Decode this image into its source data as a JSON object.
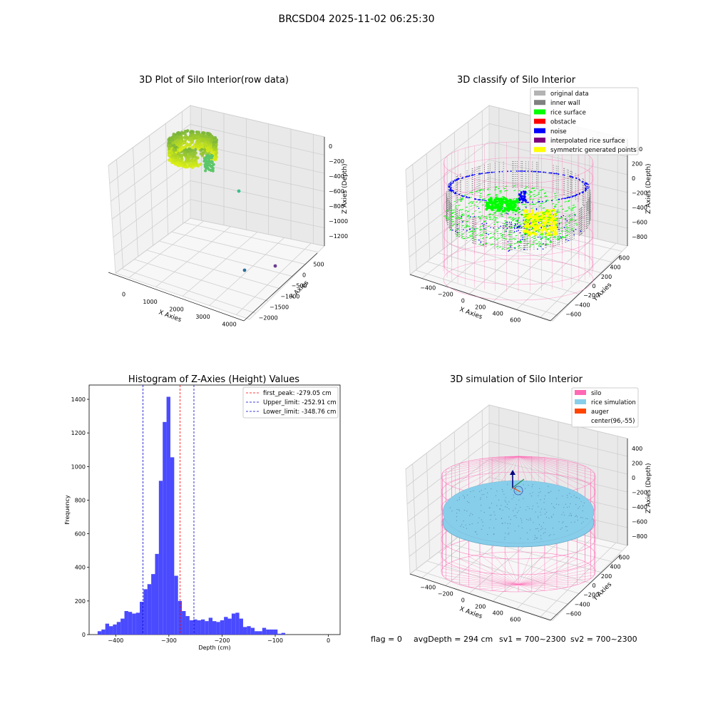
{
  "figure_title": "BRCSD04 2025-11-02 06:25:30",
  "footer": {
    "flag": "flag = 0",
    "avg_depth": "avgDepth = 294 cm",
    "sv1": "sv1 = 700~2300",
    "sv2": "sv2 = 700~2300"
  },
  "colors": {
    "original": "#b3b3b3",
    "inner_wall": "#808080",
    "rice_surface": "#00ff00",
    "obstacle": "#ff0000",
    "noise": "#0000ff",
    "interpolated": "#800080",
    "symmetric": "#ffff00",
    "silo": "#ff69b4",
    "rice_sim": "#87ceeb",
    "auger": "#ff4500",
    "hist_bar": "#4a4aff"
  },
  "chart_data": [
    {
      "type": "scatter",
      "title": "3D Plot of Silo Interior(row data)",
      "xlabel": "X Axies",
      "ylabel": "Y Axies",
      "zlabel": "Z Axies (Depth)",
      "xticks": [
        "0",
        "1000",
        "2000",
        "3000",
        "4000"
      ],
      "yticks": [
        "500",
        "0",
        "−500",
        "−1000",
        "−1500",
        "−2000"
      ],
      "zticks": [
        "0",
        "−200",
        "−400",
        "−600",
        "−800",
        "−1000",
        "−1200"
      ],
      "outliers": [
        {
          "x": 2300,
          "y": -500,
          "z": -600,
          "color": "#3cbf8c"
        },
        {
          "x": 3500,
          "y": -1600,
          "z": -1200,
          "color": "#2a6f9a"
        },
        {
          "x": 3800,
          "y": -1200,
          "z": -1200,
          "color": "#6b3d8f"
        }
      ]
    },
    {
      "type": "scatter",
      "title": "3D classify of Silo Interior",
      "xlabel": "X Axies",
      "ylabel": "Y Axies",
      "zlabel": "Z Axies (Depth)",
      "xticks": [
        "−400",
        "−200",
        "0",
        "200",
        "400",
        "600"
      ],
      "yticks": [
        "600",
        "400",
        "200",
        "0",
        "−200",
        "−400",
        "−600"
      ],
      "zticks": [
        "400",
        "200",
        "0",
        "−200",
        "−400",
        "−600",
        "−800"
      ],
      "legend": [
        "original data",
        "inner wall",
        "rice surface",
        "obstacle",
        "noise",
        "interpolated rice surface",
        "symmetric generated points"
      ],
      "legend_placement": "top-right"
    },
    {
      "type": "bar",
      "title": "Histogram of Z-Axies (Height) Values",
      "xlabel": "Depth (cm)",
      "ylabel": "Frequency",
      "xlim": [
        -450,
        22
      ],
      "ylim": [
        0,
        1485
      ],
      "xticks": [
        -400,
        -300,
        -200,
        -100,
        0
      ],
      "yticks": [
        0,
        200,
        400,
        600,
        800,
        1000,
        1200,
        1400
      ],
      "bin_start": -434,
      "bin_width": 7.2,
      "values": [
        20,
        30,
        65,
        50,
        60,
        75,
        95,
        140,
        135,
        125,
        130,
        195,
        270,
        300,
        360,
        480,
        915,
        1265,
        1415,
        1055,
        350,
        200,
        140,
        110,
        85,
        90,
        85,
        90,
        80,
        100,
        80,
        75,
        85,
        105,
        95,
        125,
        130,
        95,
        45,
        50,
        40,
        20,
        20,
        40,
        30,
        30,
        30,
        5,
        10
      ],
      "vlines": [
        {
          "label": "first_peak: -279.05 cm",
          "x": -279.05,
          "color": "#ff0000"
        },
        {
          "label": "Upper_limit: -252.91 cm",
          "x": -252.91,
          "color": "#0000cc"
        },
        {
          "label": "Lower_limit: -348.76 cm",
          "x": -348.76,
          "color": "#0000cc"
        }
      ],
      "legend_placement": "top-right"
    },
    {
      "type": "scatter",
      "title": "3D simulation of Silo Interior",
      "xlabel": "X Axies",
      "ylabel": "Y Axies",
      "zlabel": "Z Axies (Depth)",
      "xticks": [
        "−400",
        "−200",
        "0",
        "200",
        "400",
        "600"
      ],
      "yticks": [
        "600",
        "400",
        "200",
        "0",
        "−200",
        "−400",
        "−600"
      ],
      "zticks": [
        "400",
        "200",
        "0",
        "−200",
        "−400",
        "−600",
        "−800"
      ],
      "legend": [
        "silo",
        "rice simulation",
        "auger",
        "center(96,-55)"
      ],
      "legend_placement": "top-right"
    }
  ]
}
